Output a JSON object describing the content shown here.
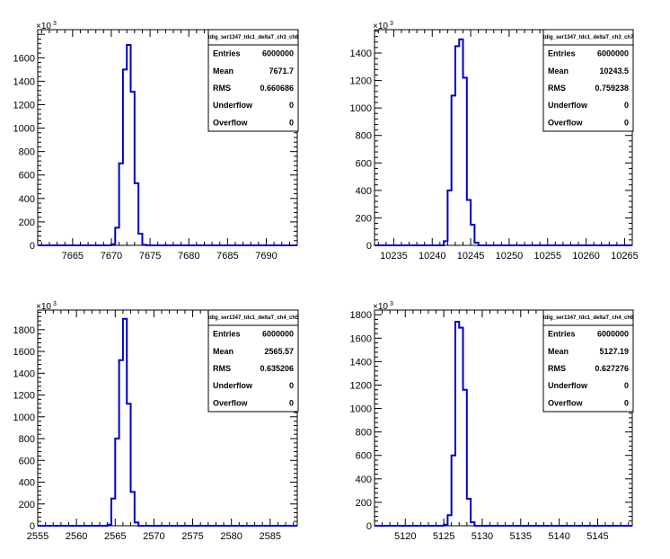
{
  "chart_data": [
    {
      "type": "bar",
      "title": "",
      "xlabel": "",
      "ylabel": "",
      "y_multiplier": "×10",
      "y_multiplier_exp": "3",
      "xlim": [
        7660.5,
        7694
      ],
      "ylim": [
        0,
        1840
      ],
      "x_ticks": [
        "7665",
        "7670",
        "7675",
        "7680",
        "7685",
        "7690"
      ],
      "y_ticks": [
        "0",
        "200",
        "400",
        "600",
        "800",
        "1000",
        "1200",
        "1400",
        "1600"
      ],
      "bins": {
        "start": 7669.5,
        "width": 0.5
      },
      "values": [
        0,
        10,
        150,
        700,
        1500,
        1710,
        1310,
        530,
        100,
        5,
        0
      ],
      "stats": {
        "title": "tdig_ser1347_tdc1_deltaT_ch3_ch8",
        "rows": [
          {
            "label": "Entries",
            "value": "6000000"
          },
          {
            "label": "Mean",
            "value": "7671.7"
          },
          {
            "label": "RMS",
            "value": "0.660686"
          },
          {
            "label": "Underflow",
            "value": "0"
          },
          {
            "label": "Overflow",
            "value": "0"
          }
        ]
      }
    },
    {
      "type": "bar",
      "title": "",
      "xlabel": "",
      "ylabel": "",
      "y_multiplier": "×10",
      "y_multiplier_exp": "3",
      "xlim": [
        10232.5,
        10266
      ],
      "ylim": [
        0,
        1570
      ],
      "x_ticks": [
        "10235",
        "10240",
        "10245",
        "10250",
        "10255",
        "10260",
        "10265"
      ],
      "y_ticks": [
        "0",
        "200",
        "400",
        "600",
        "800",
        "1000",
        "1200",
        "1400"
      ],
      "bins": {
        "start": 10241,
        "width": 0.5
      },
      "values": [
        0,
        30,
        400,
        1090,
        1450,
        1500,
        1220,
        330,
        150,
        20,
        0
      ],
      "stats": {
        "title": "tdig_ser1347_tdc1_deltaT_ch3_ch7",
        "rows": [
          {
            "label": "Entries",
            "value": "6000000"
          },
          {
            "label": "Mean",
            "value": "10243.5"
          },
          {
            "label": "RMS",
            "value": "0.759238"
          },
          {
            "label": "Underflow",
            "value": "0"
          },
          {
            "label": "Overflow",
            "value": "0"
          }
        ]
      }
    },
    {
      "type": "bar",
      "title": "",
      "xlabel": "",
      "ylabel": "",
      "y_multiplier": "×10",
      "y_multiplier_exp": "3",
      "xlim": [
        2555,
        2588.5
      ],
      "ylim": [
        0,
        1980
      ],
      "x_ticks": [
        "2555",
        "2560",
        "2565",
        "2570",
        "2575",
        "2580",
        "2585"
      ],
      "y_ticks": [
        "0",
        "200",
        "400",
        "600",
        "800",
        "1000",
        "1200",
        "1400",
        "1600",
        "1800"
      ],
      "bins": {
        "start": 2563.5,
        "width": 0.5
      },
      "values": [
        0,
        10,
        250,
        800,
        1520,
        1900,
        1120,
        310,
        30,
        0
      ],
      "stats": {
        "title": "tdig_ser1347_tdc1_deltaT_ch4_ch5",
        "rows": [
          {
            "label": "Entries",
            "value": "6000000"
          },
          {
            "label": "Mean",
            "value": "2565.57"
          },
          {
            "label": "RMS",
            "value": "0.635206"
          },
          {
            "label": "Underflow",
            "value": "0"
          },
          {
            "label": "Overflow",
            "value": "0"
          }
        ]
      }
    },
    {
      "type": "bar",
      "title": "",
      "xlabel": "",
      "ylabel": "",
      "y_multiplier": "×10",
      "y_multiplier_exp": "3",
      "xlim": [
        5116,
        5149.5
      ],
      "ylim": [
        0,
        1840
      ],
      "x_ticks": [
        "5120",
        "5125",
        "5130",
        "5135",
        "5140",
        "5145"
      ],
      "y_ticks": [
        "0",
        "200",
        "400",
        "600",
        "800",
        "1000",
        "1200",
        "1400",
        "1600",
        "1800"
      ],
      "bins": {
        "start": 5124.5,
        "width": 0.5
      },
      "values": [
        0,
        10,
        90,
        600,
        1740,
        1690,
        1160,
        230,
        30,
        0
      ],
      "stats": {
        "title": "tdig_ser1347_tdc1_deltaT_ch4_ch6",
        "rows": [
          {
            "label": "Entries",
            "value": "6000000"
          },
          {
            "label": "Mean",
            "value": "5127.19"
          },
          {
            "label": "RMS",
            "value": "0.627276"
          },
          {
            "label": "Underflow",
            "value": "0"
          },
          {
            "label": "Overflow",
            "value": "0"
          }
        ]
      }
    }
  ],
  "colors": {
    "histogram": "#0000cc",
    "frame": "#000000",
    "background": "#ffffff"
  }
}
